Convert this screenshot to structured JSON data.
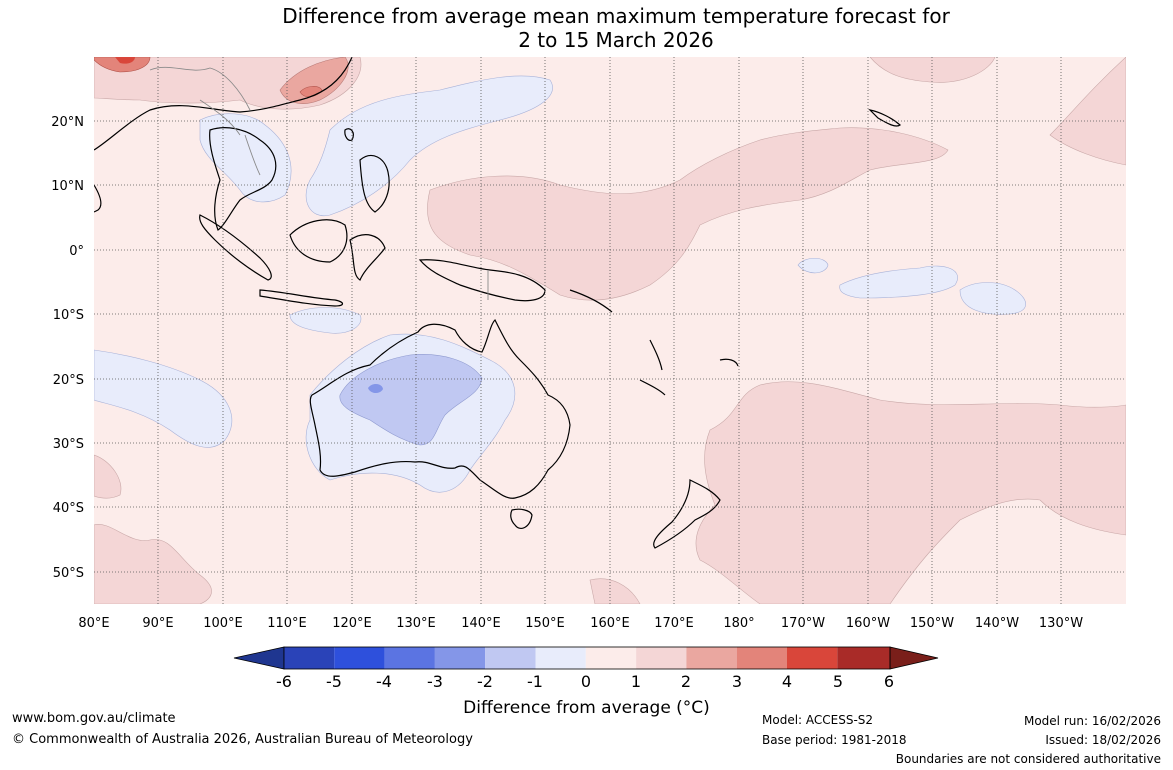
{
  "title": {
    "line1": "Difference from average mean maximum temperature forecast for",
    "line2": "2 to 15 March 2026"
  },
  "map": {
    "lat_labels": [
      "20°N",
      "10°N",
      "0°",
      "10°S",
      "20°S",
      "30°S",
      "40°S",
      "50°S"
    ],
    "lon_labels": [
      "80°E",
      "90°E",
      "100°E",
      "110°E",
      "120°E",
      "130°E",
      "140°E",
      "150°E",
      "160°E",
      "170°E",
      "180°",
      "170°W",
      "160°W",
      "150°W",
      "140°W",
      "130°W"
    ],
    "lat_range": [
      -55,
      30
    ],
    "lon_range": [
      80,
      240
    ]
  },
  "colorbar": {
    "ticks": [
      "-6",
      "-5",
      "-4",
      "-3",
      "-2",
      "-1",
      "0",
      "1",
      "2",
      "3",
      "4",
      "5",
      "6"
    ],
    "colors": [
      "#1f3690",
      "#2a43b8",
      "#2e50dc",
      "#5b74e2",
      "#8496e8",
      "#c0c8f2",
      "#e8ecfb",
      "#fcecea",
      "#f4d6d6",
      "#eaa7a0",
      "#e3847a",
      "#d9463a",
      "#a92b28",
      "#7a1f1a"
    ],
    "label": "Difference from average (°C)"
  },
  "footer": {
    "website": "www.bom.gov.au/climate",
    "copyright": "© Commonwealth of Australia 2026, Australian Bureau of Meteorology",
    "model": "Model: ACCESS-S2",
    "base_period": "Base period: 1981-2018",
    "model_run": "Model run: 16/02/2026",
    "issued": "Issued: 18/02/2026",
    "disclaimer": "Boundaries are not considered authoritative"
  }
}
